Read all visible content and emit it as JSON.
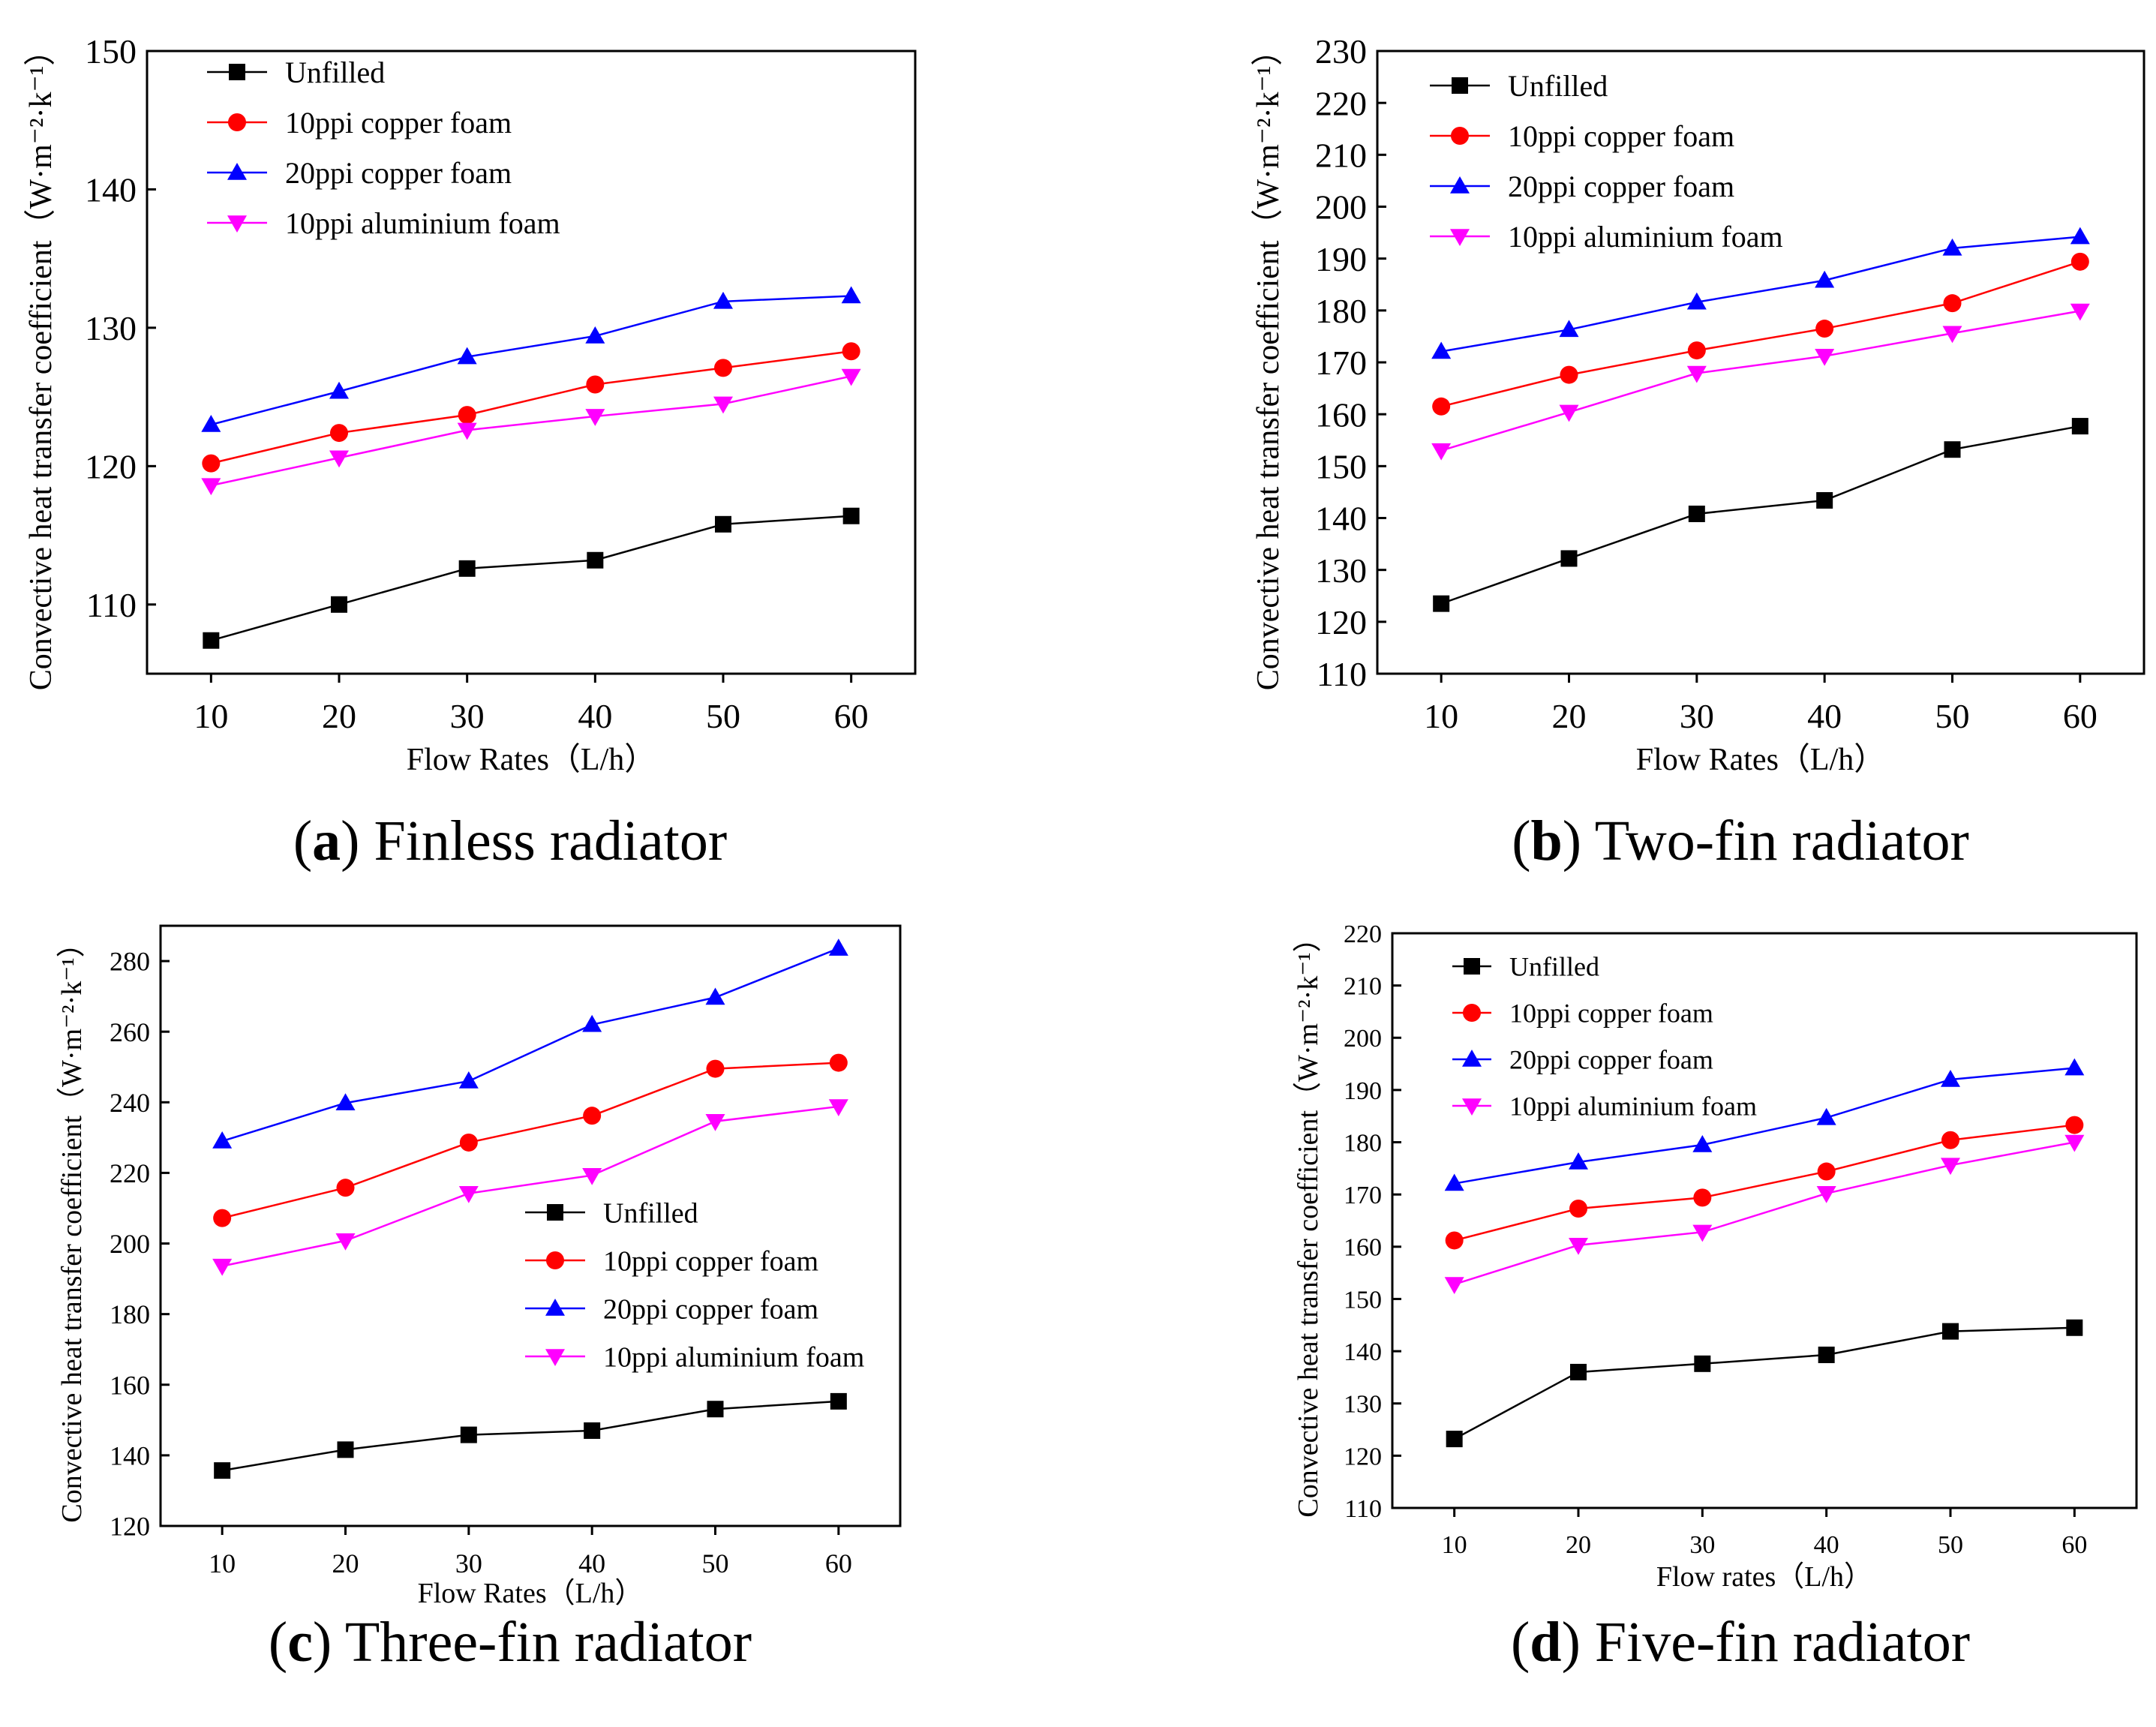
{
  "colors": {
    "unfilled": "#000000",
    "copper10": "#ff0000",
    "copper20": "#0000ff",
    "aluminium10": "#ff00ff",
    "axis": "#000000"
  },
  "chart_data": [
    {
      "type": "line",
      "panel": "a",
      "caption_letter": "a",
      "caption_text": "Finless radiator",
      "xlabel": "Flow Rates（L/h）",
      "ylabel": "Convective heat transfer coefficient（W·m⁻²·k⁻¹）",
      "x": [
        10,
        20,
        30,
        40,
        50,
        60
      ],
      "xlim": [
        5,
        65
      ],
      "ylim": [
        105,
        150
      ],
      "yticks": [
        110,
        120,
        130,
        140,
        150
      ],
      "legend_position": "top-left",
      "series": [
        {
          "name": "Unfilled",
          "marker": "square",
          "color": "#000000",
          "values": [
            107.4,
            110.0,
            112.6,
            113.2,
            115.8,
            116.4
          ]
        },
        {
          "name": "10ppi copper foam",
          "marker": "circle",
          "color": "#ff0000",
          "values": [
            120.2,
            122.4,
            123.7,
            125.9,
            127.1,
            128.3
          ]
        },
        {
          "name": "20ppi copper foam",
          "marker": "triangle-up",
          "color": "#0000ff",
          "values": [
            123.0,
            125.4,
            127.9,
            129.4,
            131.9,
            132.3
          ]
        },
        {
          "name": "10ppi aluminium foam",
          "marker": "triangle-down",
          "color": "#ff00ff",
          "values": [
            118.6,
            120.6,
            122.6,
            123.6,
            124.5,
            126.5
          ]
        }
      ]
    },
    {
      "type": "line",
      "panel": "b",
      "caption_letter": "b",
      "caption_text": "Two-fin radiator",
      "xlabel": "Flow Rates（L/h）",
      "ylabel": "Convective heat transfer coefficient（W·m⁻²·k⁻¹）",
      "x": [
        10,
        20,
        30,
        40,
        50,
        60
      ],
      "xlim": [
        5,
        65
      ],
      "ylim": [
        110,
        230
      ],
      "yticks": [
        110,
        120,
        130,
        140,
        150,
        160,
        170,
        180,
        190,
        200,
        210,
        220,
        230
      ],
      "legend_position": "top-left",
      "series": [
        {
          "name": "Unfilled",
          "marker": "square",
          "color": "#000000",
          "values": [
            123.5,
            132.2,
            140.8,
            143.4,
            153.2,
            157.7
          ]
        },
        {
          "name": "10ppi copper foam",
          "marker": "circle",
          "color": "#ff0000",
          "values": [
            161.5,
            167.6,
            172.3,
            176.5,
            181.4,
            189.4
          ]
        },
        {
          "name": "20ppi copper foam",
          "marker": "triangle-up",
          "color": "#0000ff",
          "values": [
            172.1,
            176.3,
            181.6,
            185.8,
            192.0,
            194.2
          ]
        },
        {
          "name": "10ppi aluminium foam",
          "marker": "triangle-down",
          "color": "#ff00ff",
          "values": [
            153.0,
            160.4,
            167.9,
            171.2,
            175.6,
            179.9
          ]
        }
      ]
    },
    {
      "type": "line",
      "panel": "c",
      "caption_letter": "c",
      "caption_text": "Three-fin radiator",
      "xlabel": "Flow Rates（L/h）",
      "ylabel": "Convective heat transfer coefficient（W·m⁻²·k⁻¹）",
      "x": [
        10,
        20,
        30,
        40,
        50,
        60
      ],
      "xlim": [
        5,
        65
      ],
      "ylim": [
        120,
        290
      ],
      "yticks": [
        120,
        140,
        160,
        180,
        200,
        220,
        240,
        260,
        280
      ],
      "legend_position": "center-right",
      "series": [
        {
          "name": "Unfilled",
          "marker": "square",
          "color": "#000000",
          "values": [
            135.7,
            141.6,
            145.8,
            147.0,
            153.1,
            155.3
          ]
        },
        {
          "name": "10ppi copper foam",
          "marker": "circle",
          "color": "#ff0000",
          "values": [
            207.2,
            215.8,
            228.6,
            236.2,
            249.5,
            251.2
          ]
        },
        {
          "name": "20ppi copper foam",
          "marker": "triangle-up",
          "color": "#0000ff",
          "values": [
            229.0,
            239.8,
            246.0,
            262.0,
            269.7,
            283.6
          ]
        },
        {
          "name": "10ppi aluminium foam",
          "marker": "triangle-down",
          "color": "#ff00ff",
          "values": [
            193.6,
            200.8,
            214.2,
            219.3,
            234.6,
            238.8
          ]
        }
      ]
    },
    {
      "type": "line",
      "panel": "d",
      "caption_letter": "d",
      "caption_text": "Five-fin radiator",
      "xlabel": "Flow rates（L/h）",
      "ylabel": "Convective heat transfer coefficient（W·m⁻²·k⁻¹）",
      "x": [
        10,
        20,
        30,
        40,
        50,
        60
      ],
      "xlim": [
        5,
        65
      ],
      "ylim": [
        110,
        220
      ],
      "yticks": [
        110,
        120,
        130,
        140,
        150,
        160,
        170,
        180,
        190,
        200,
        210,
        220
      ],
      "legend_position": "top-left",
      "series": [
        {
          "name": "Unfilled",
          "marker": "square",
          "color": "#000000",
          "values": [
            123.2,
            136.0,
            137.6,
            139.3,
            143.8,
            144.5
          ]
        },
        {
          "name": "10ppi copper foam",
          "marker": "circle",
          "color": "#ff0000",
          "values": [
            161.2,
            167.3,
            169.4,
            174.4,
            180.4,
            183.3
          ]
        },
        {
          "name": "20ppi copper foam",
          "marker": "triangle-up",
          "color": "#0000ff",
          "values": [
            172.1,
            176.2,
            179.5,
            184.7,
            192.0,
            194.2
          ]
        },
        {
          "name": "10ppi aluminium foam",
          "marker": "triangle-down",
          "color": "#ff00ff",
          "values": [
            152.8,
            160.3,
            162.8,
            170.2,
            175.6,
            180.0
          ]
        }
      ]
    }
  ]
}
